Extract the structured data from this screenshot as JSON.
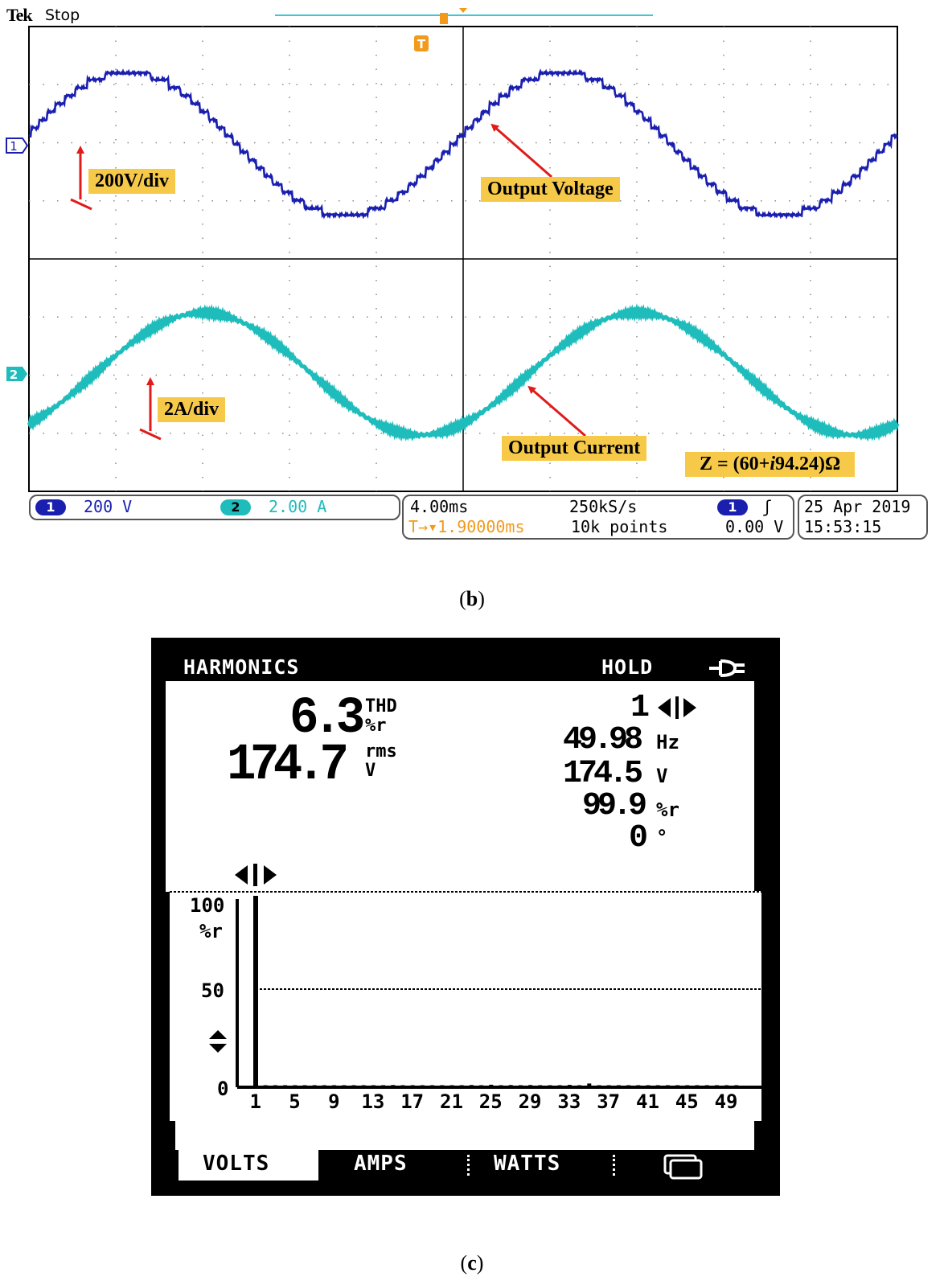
{
  "chart_data": [
    {
      "type": "line",
      "brand": "Tek",
      "status": "Stop",
      "series": [
        {
          "name": "Output Voltage",
          "channel": "1",
          "scale": "200V/div",
          "color": "#1a1fb0",
          "waveform": "stepped-sine",
          "cycles_shown": 2
        },
        {
          "name": "Output Current",
          "channel": "2",
          "scale": "2A/div",
          "color": "#1fbcbc",
          "waveform": "sine",
          "cycles_shown": 2
        }
      ],
      "channel_markers": [
        "1",
        "2"
      ],
      "trigger_marker": "T",
      "annotations": {
        "voltage_scale": "200V/div",
        "current_scale": "2A/div",
        "voltage_label": "Output Voltage",
        "current_label": "Output Current",
        "impedance_prefix": "Z = (60+",
        "impedance_imag": "i",
        "impedance_suffix": "94.24)Ω"
      },
      "readout": {
        "ch1_num": "1",
        "ch1_scale": "200 V",
        "ch2_num": "2",
        "ch2_scale": "2.00 A",
        "timebase": "4.00ms",
        "sample_rate": "250kS/s",
        "trigger_delay": "T→▾1.90000ms",
        "record_length": "10k points",
        "trigger_source": "1",
        "trigger_slope": "ʃ",
        "trigger_level": "0.00 V",
        "date": "25 Apr 2019",
        "time": "15:53:15"
      },
      "caption": "b",
      "colors": {
        "ch1": "#1a1fb0",
        "ch2": "#1fbcbc",
        "trigger": "#f29a1c",
        "label_bg": "#f7c948",
        "arrow": "#e01b1b"
      }
    },
    {
      "type": "bar",
      "screen_title": "HARMONICS",
      "hold": "HOLD",
      "plug_icon": "plug-icon",
      "thd_value": "6.3",
      "thd_label": "THD",
      "thd_unit": "%r",
      "rms_value": "174.7",
      "rms_label": "rms",
      "rms_unit": "V",
      "harmonic_number": "1",
      "selector_icon": "left-right-cursor-icon",
      "frequency": "49.98",
      "frequency_unit": "Hz",
      "harmonic_voltage": "174.5",
      "harmonic_voltage_unit": "V",
      "harmonic_percent": "99.9",
      "harmonic_percent_unit": "%r",
      "phase": "0",
      "phase_unit": "°",
      "ylabel_top": "100",
      "ylabel_unit": "%r",
      "ylabel_mid": "50",
      "ylabel_zero": "0",
      "ylim": [
        0,
        100
      ],
      "scroll_icon": "up-down-arrows-icon",
      "categories": [
        "1",
        "2",
        "3",
        "4",
        "5",
        "6",
        "7",
        "8",
        "9",
        "10",
        "11",
        "12",
        "13",
        "14",
        "15",
        "16",
        "17",
        "18",
        "19",
        "20",
        "21",
        "22",
        "23",
        "24",
        "25",
        "26",
        "27",
        "28",
        "29",
        "30",
        "31",
        "32",
        "33",
        "34",
        "35",
        "36",
        "37",
        "38",
        "39",
        "40",
        "41",
        "42",
        "43",
        "44",
        "45",
        "46",
        "47",
        "48",
        "49",
        "50"
      ],
      "values": [
        100,
        0.2,
        0.3,
        0.2,
        0.5,
        0.2,
        0.4,
        0.2,
        0.6,
        0.2,
        0.4,
        0.2,
        0.5,
        0.2,
        0.7,
        0.2,
        0.5,
        0.2,
        0.6,
        0.2,
        0.5,
        0.2,
        0.7,
        0.3,
        0.9,
        0.3,
        0.7,
        0.2,
        0.7,
        0.2,
        0.5,
        0.2,
        0.8,
        0.4,
        1.5,
        0.3,
        0.6,
        0.2,
        0.4,
        0.2,
        0.6,
        0.2,
        0.4,
        0.2,
        0.4,
        0.2,
        0.3,
        0.2,
        0.3,
        0.2
      ],
      "x_tick_labels": [
        "1",
        "5",
        "9",
        "13",
        "17",
        "21",
        "25",
        "29",
        "33",
        "37",
        "41",
        "45",
        "49"
      ],
      "tabs": [
        "VOLTS",
        "AMPS",
        "WATTS"
      ],
      "tab_icon": "screen-icon",
      "caption": "c"
    }
  ]
}
